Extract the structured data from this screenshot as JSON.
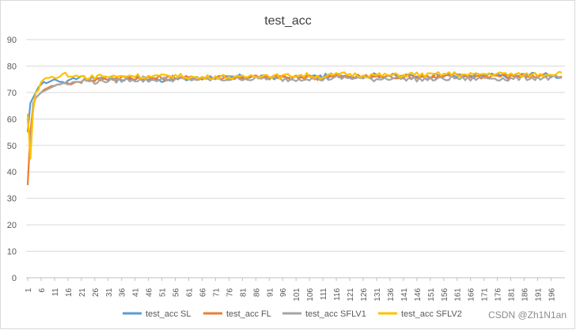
{
  "watermark": "CSDN @Zh1N1an",
  "chart_data": {
    "type": "line",
    "title": "test_acc",
    "xlabel": "",
    "ylabel": "",
    "ylim": [
      0,
      90
    ],
    "yticks": [
      0,
      10,
      20,
      30,
      40,
      50,
      60,
      70,
      80,
      90
    ],
    "xlim": [
      1,
      200
    ],
    "xticks": [
      1,
      6,
      11,
      16,
      21,
      26,
      31,
      36,
      41,
      46,
      51,
      56,
      61,
      66,
      71,
      76,
      81,
      86,
      91,
      96,
      101,
      106,
      111,
      116,
      121,
      126,
      131,
      136,
      141,
      146,
      151,
      156,
      161,
      166,
      171,
      176,
      181,
      186,
      191,
      196
    ],
    "grid": "horizontal",
    "legend_position": "bottom",
    "series_order": [
      "test_acc SL",
      "test_acc FL",
      "test_acc SFLV1",
      "test_acc SFLV2"
    ],
    "series": [
      {
        "name": "test_acc SL",
        "color": "#5b9bd5",
        "points": [
          [
            1,
            55
          ],
          [
            2,
            66
          ],
          [
            3,
            68
          ],
          [
            4,
            70
          ],
          [
            5,
            72
          ],
          [
            6,
            73
          ],
          [
            7,
            74
          ],
          [
            8,
            73.5
          ],
          [
            9,
            74
          ],
          [
            10,
            74.5
          ],
          [
            11,
            75
          ],
          [
            12,
            74.5
          ],
          [
            13,
            74
          ],
          [
            14,
            74
          ],
          [
            15,
            73.5
          ],
          [
            16,
            74.5
          ],
          [
            17,
            75
          ],
          [
            18,
            75.5
          ],
          [
            19,
            75
          ],
          [
            20,
            75.5
          ],
          [
            22,
            75.5
          ],
          [
            24,
            75
          ],
          [
            26,
            75.5
          ],
          [
            28,
            75.5
          ],
          [
            30,
            75.5
          ],
          [
            35,
            75
          ],
          [
            40,
            75.5
          ],
          [
            45,
            75.5
          ],
          [
            50,
            74.5
          ],
          [
            55,
            75.5
          ],
          [
            60,
            75
          ],
          [
            65,
            75.5
          ],
          [
            70,
            76
          ],
          [
            75,
            75.5
          ],
          [
            80,
            76
          ],
          [
            85,
            76
          ],
          [
            90,
            75.5
          ],
          [
            95,
            76
          ],
          [
            100,
            75.5
          ],
          [
            105,
            76
          ],
          [
            110,
            76
          ],
          [
            115,
            76.5
          ],
          [
            120,
            76.5
          ],
          [
            125,
            76
          ],
          [
            130,
            76.5
          ],
          [
            135,
            76.5
          ],
          [
            140,
            76
          ],
          [
            145,
            76.5
          ],
          [
            150,
            76
          ],
          [
            155,
            76.5
          ],
          [
            160,
            76.5
          ],
          [
            165,
            76
          ],
          [
            170,
            76.5
          ],
          [
            175,
            76.5
          ],
          [
            180,
            76
          ],
          [
            185,
            76.5
          ],
          [
            190,
            77
          ],
          [
            195,
            76.5
          ],
          [
            200,
            76
          ]
        ]
      },
      {
        "name": "test_acc FL",
        "color": "#ed7d31",
        "points": [
          [
            1,
            35
          ],
          [
            2,
            55
          ],
          [
            3,
            65
          ],
          [
            4,
            68
          ],
          [
            5,
            69
          ],
          [
            6,
            70
          ],
          [
            7,
            71
          ],
          [
            8,
            71.5
          ],
          [
            9,
            72
          ],
          [
            10,
            72.5
          ],
          [
            11,
            72.5
          ],
          [
            12,
            73
          ],
          [
            13,
            73
          ],
          [
            14,
            73.5
          ],
          [
            15,
            73.5
          ],
          [
            16,
            73.5
          ],
          [
            17,
            73
          ],
          [
            18,
            73.5
          ],
          [
            19,
            74
          ],
          [
            20,
            74
          ],
          [
            22,
            74.5
          ],
          [
            24,
            75
          ],
          [
            26,
            75
          ],
          [
            28,
            75
          ],
          [
            30,
            75
          ],
          [
            35,
            75.5
          ],
          [
            40,
            75.5
          ],
          [
            45,
            75.5
          ],
          [
            50,
            75.5
          ],
          [
            55,
            75.5
          ],
          [
            60,
            75.5
          ],
          [
            65,
            75.5
          ],
          [
            70,
            75.5
          ],
          [
            75,
            75.5
          ],
          [
            80,
            75.5
          ],
          [
            85,
            76
          ],
          [
            90,
            75.5
          ],
          [
            95,
            76
          ],
          [
            100,
            75.5
          ],
          [
            105,
            76
          ],
          [
            110,
            75.5
          ],
          [
            115,
            76
          ],
          [
            120,
            76
          ],
          [
            125,
            76
          ],
          [
            130,
            76
          ],
          [
            135,
            76
          ],
          [
            140,
            76
          ],
          [
            145,
            76
          ],
          [
            150,
            76
          ],
          [
            155,
            76
          ],
          [
            160,
            76.5
          ],
          [
            165,
            76
          ],
          [
            170,
            76
          ],
          [
            175,
            76.5
          ],
          [
            180,
            76
          ],
          [
            185,
            76.5
          ],
          [
            190,
            76
          ],
          [
            195,
            76
          ],
          [
            200,
            76
          ]
        ]
      },
      {
        "name": "test_acc SFLV1",
        "color": "#a5a5a5",
        "points": [
          [
            1,
            60
          ],
          [
            2,
            48
          ],
          [
            3,
            66
          ],
          [
            4,
            68
          ],
          [
            5,
            69
          ],
          [
            6,
            70
          ],
          [
            7,
            70.5
          ],
          [
            8,
            71
          ],
          [
            9,
            71.5
          ],
          [
            10,
            72
          ],
          [
            11,
            72.5
          ],
          [
            12,
            73
          ],
          [
            13,
            73
          ],
          [
            14,
            73.5
          ],
          [
            15,
            73.5
          ],
          [
            16,
            73
          ],
          [
            17,
            73.5
          ],
          [
            18,
            74
          ],
          [
            19,
            74
          ],
          [
            20,
            74
          ],
          [
            22,
            74.5
          ],
          [
            24,
            74.5
          ],
          [
            26,
            74
          ],
          [
            28,
            74.5
          ],
          [
            30,
            74.5
          ],
          [
            35,
            74.5
          ],
          [
            40,
            75
          ],
          [
            45,
            74.5
          ],
          [
            50,
            75
          ],
          [
            55,
            75
          ],
          [
            60,
            75
          ],
          [
            65,
            75
          ],
          [
            70,
            75
          ],
          [
            75,
            75
          ],
          [
            80,
            75.5
          ],
          [
            85,
            75
          ],
          [
            90,
            75.5
          ],
          [
            95,
            75
          ],
          [
            100,
            75
          ],
          [
            105,
            75.5
          ],
          [
            110,
            75
          ],
          [
            115,
            75.5
          ],
          [
            120,
            75.5
          ],
          [
            125,
            75.5
          ],
          [
            130,
            75
          ],
          [
            135,
            75.5
          ],
          [
            140,
            75.5
          ],
          [
            145,
            75
          ],
          [
            150,
            75
          ],
          [
            155,
            75
          ],
          [
            160,
            75.5
          ],
          [
            165,
            75
          ],
          [
            170,
            75.5
          ],
          [
            175,
            75.5
          ],
          [
            180,
            75
          ],
          [
            185,
            75.5
          ],
          [
            190,
            75.5
          ],
          [
            195,
            75.5
          ],
          [
            200,
            75.5
          ]
        ]
      },
      {
        "name": "test_acc SFLV2",
        "color": "#ffc000",
        "points": [
          [
            1,
            62
          ],
          [
            2,
            45
          ],
          [
            3,
            63
          ],
          [
            4,
            70
          ],
          [
            5,
            71
          ],
          [
            6,
            74
          ],
          [
            7,
            75
          ],
          [
            8,
            75.5
          ],
          [
            9,
            75.5
          ],
          [
            10,
            76
          ],
          [
            11,
            75.5
          ],
          [
            12,
            75.5
          ],
          [
            13,
            76
          ],
          [
            14,
            77
          ],
          [
            15,
            77.5
          ],
          [
            16,
            76
          ],
          [
            17,
            76
          ],
          [
            18,
            76
          ],
          [
            19,
            76.5
          ],
          [
            20,
            76
          ],
          [
            22,
            76
          ],
          [
            24,
            75.5
          ],
          [
            26,
            76
          ],
          [
            28,
            76.5
          ],
          [
            30,
            76
          ],
          [
            35,
            76
          ],
          [
            40,
            76.5
          ],
          [
            45,
            76
          ],
          [
            50,
            76
          ],
          [
            55,
            76.5
          ],
          [
            60,
            76
          ],
          [
            65,
            75.5
          ],
          [
            70,
            76
          ],
          [
            75,
            76
          ],
          [
            80,
            75.5
          ],
          [
            85,
            76.5
          ],
          [
            90,
            76.5
          ],
          [
            95,
            76
          ],
          [
            100,
            76.5
          ],
          [
            105,
            76.5
          ],
          [
            110,
            76
          ],
          [
            115,
            76.5
          ],
          [
            120,
            77
          ],
          [
            125,
            76.5
          ],
          [
            130,
            76.5
          ],
          [
            135,
            76.5
          ],
          [
            140,
            76.5
          ],
          [
            145,
            77
          ],
          [
            150,
            76.5
          ],
          [
            155,
            77
          ],
          [
            160,
            77
          ],
          [
            165,
            76.5
          ],
          [
            170,
            77
          ],
          [
            175,
            77
          ],
          [
            180,
            77
          ],
          [
            185,
            76.5
          ],
          [
            190,
            77
          ],
          [
            195,
            77
          ],
          [
            200,
            77.5
          ]
        ]
      }
    ]
  }
}
